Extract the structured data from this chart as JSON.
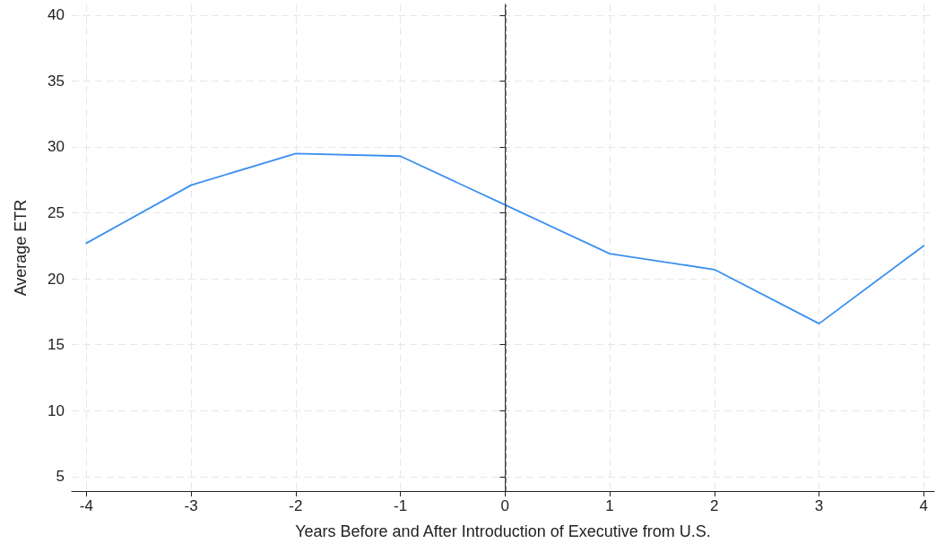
{
  "chart_data": {
    "type": "line",
    "xlabel": "Years Before and After Introduction of Executive from U.S.",
    "ylabel": "Average ETR",
    "x": [
      -4,
      -3,
      -2,
      -1,
      0,
      1,
      2,
      3,
      4
    ],
    "series": [
      {
        "color": "#3a8ff0",
        "values": [
          22.7,
          27.1,
          29.5,
          29.3,
          25.6,
          21.9,
          20.7,
          16.6,
          22.5
        ]
      }
    ],
    "xlim": [
      -4.14,
      4.1
    ],
    "xticks": [
      -4,
      -3,
      -2,
      -1,
      0,
      1,
      2,
      3,
      4
    ],
    "ylim": [
      3.9,
      40.8
    ],
    "yticks": [
      5,
      10,
      15,
      20,
      25,
      30,
      35,
      40
    ],
    "grid": true,
    "marker": "none",
    "line_style": "solid",
    "ref_lines": [
      {
        "axis": "x",
        "value": 0,
        "color": "#555555",
        "line_style": "dashed"
      }
    ]
  }
}
